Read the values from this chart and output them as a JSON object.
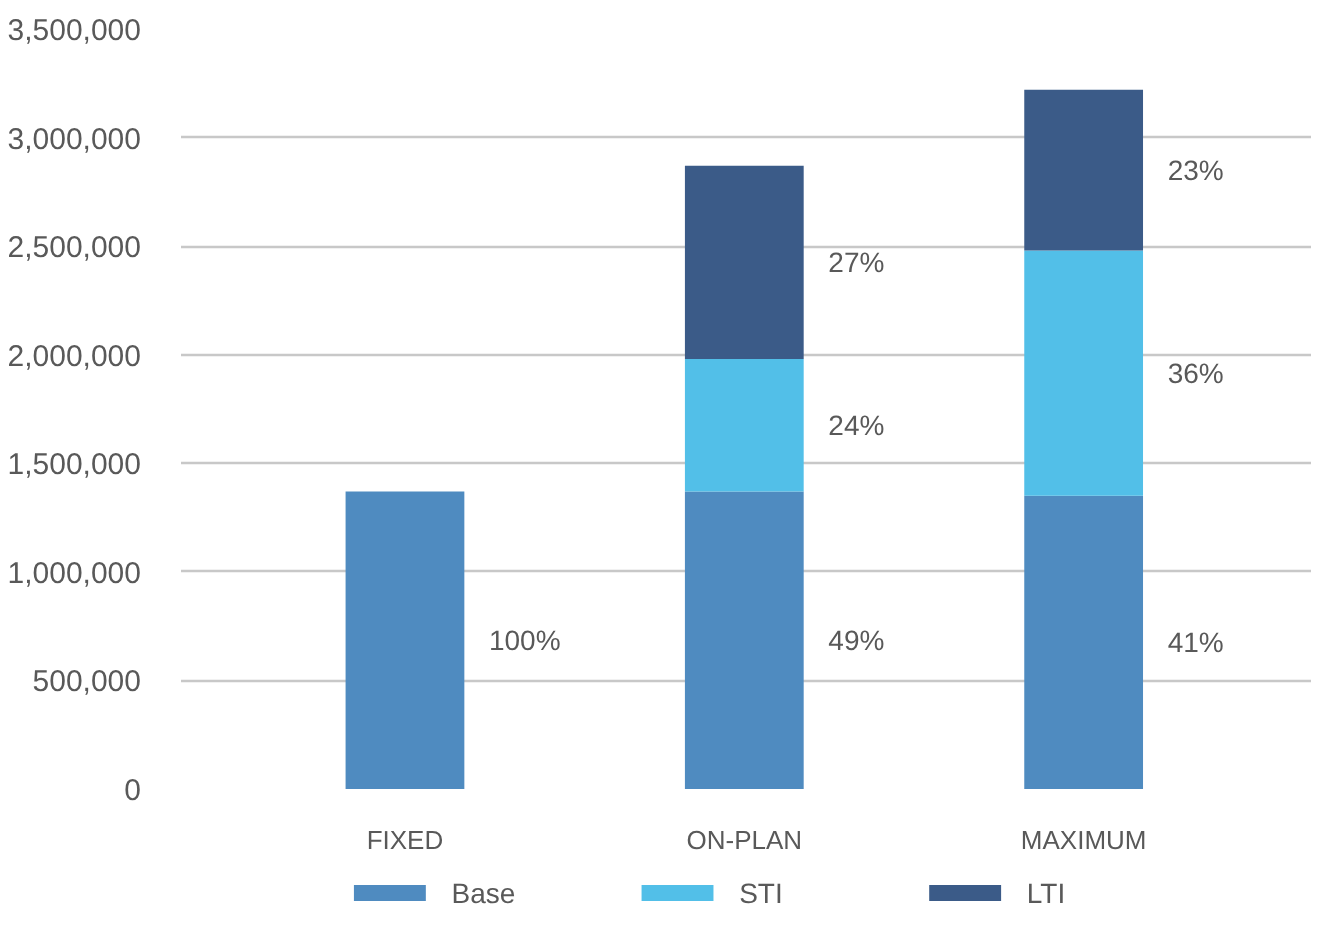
{
  "chart_data": {
    "type": "bar",
    "stacked": true,
    "categories": [
      "FIXED",
      "ON-PLAN",
      "MAXIMUM"
    ],
    "series": [
      {
        "name": "Base",
        "color": "#4f8bc0",
        "values": [
          1370000,
          1370000,
          1350000
        ]
      },
      {
        "name": "STI",
        "color": "#52bfe8",
        "values": [
          null,
          610000,
          1130000
        ]
      },
      {
        "name": "LTI",
        "color": "#3b5b88",
        "values": [
          null,
          890000,
          740000
        ]
      }
    ],
    "annotations": [
      "100%",
      "49%",
      "24%",
      "27%",
      "41%",
      "36%",
      "23%"
    ],
    "ylim": [
      0,
      3500000
    ],
    "yticks": [
      {
        "value": 0,
        "label": "0"
      },
      {
        "value": 500000,
        "label": "500,000"
      },
      {
        "value": 1000000,
        "label": "1,000,000"
      },
      {
        "value": 1500000,
        "label": "1,500,000"
      },
      {
        "value": 2000000,
        "label": "2,000,000"
      },
      {
        "value": 2500000,
        "label": "2,500,000"
      },
      {
        "value": 3000000,
        "label": "3,000,000"
      },
      {
        "value": 3500000,
        "label": "3,500,000"
      }
    ],
    "grid": "y",
    "legend": "bottom"
  }
}
